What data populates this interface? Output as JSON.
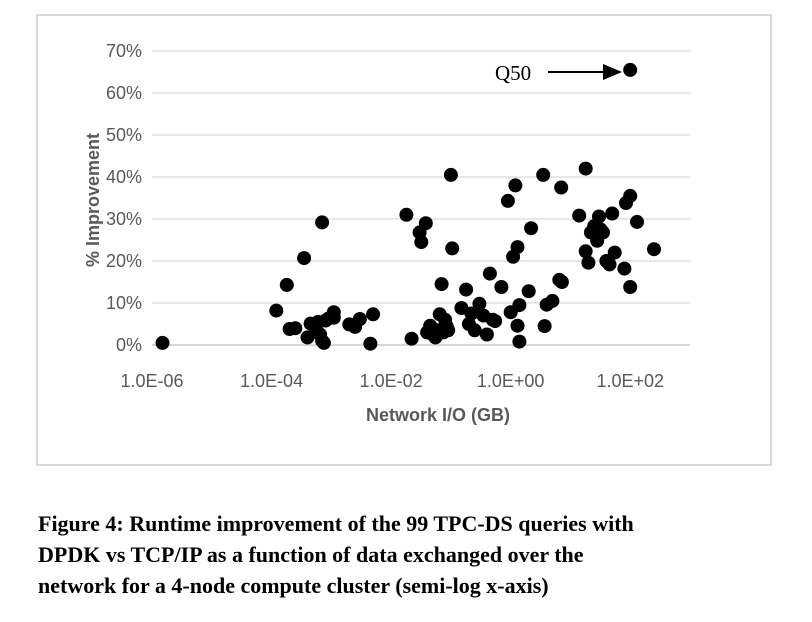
{
  "chart_data": {
    "type": "scatter",
    "title": "",
    "xlabel": "Network I/O (GB)",
    "ylabel": "% Improvement",
    "x_scale": "log",
    "xlim": [
      1e-06,
      1000
    ],
    "ylim": [
      0,
      70
    ],
    "x_ticks": [
      1e-06,
      0.0001,
      0.01,
      1,
      100
    ],
    "x_tick_labels": [
      "1.0E-06",
      "1.0E-04",
      "1.0E-02",
      "1.0E+00",
      "1.0E+02"
    ],
    "y_ticks": [
      0,
      10,
      20,
      30,
      40,
      50,
      60,
      70
    ],
    "y_tick_labels": [
      "0%",
      "10%",
      "20%",
      "30%",
      "40%",
      "50%",
      "60%",
      "70%"
    ],
    "grid": "horizontal",
    "marker_color": "#000000",
    "annotation": {
      "text": "Q50",
      "x": 100,
      "y": 65.5
    },
    "series": [
      {
        "points": [
          [
            1.5e-06,
            0.5
          ],
          [
            0.00012,
            8.2
          ],
          [
            0.00018,
            14.3
          ],
          [
            0.0002,
            3.8
          ],
          [
            0.00025,
            4.0
          ],
          [
            0.00035,
            20.7
          ],
          [
            0.0004,
            1.8
          ],
          [
            0.00045,
            5.1
          ],
          [
            0.00055,
            4.2
          ],
          [
            0.0006,
            5.5
          ],
          [
            0.00065,
            2.5
          ],
          [
            0.0007,
            29.2
          ],
          [
            0.0007,
            1.0
          ],
          [
            0.00075,
            0.5
          ],
          [
            0.0008,
            5.8
          ],
          [
            0.0009,
            6.3
          ],
          [
            0.0011,
            7.8
          ],
          [
            0.0011,
            6.5
          ],
          [
            0.002,
            4.9
          ],
          [
            0.0025,
            4.3
          ],
          [
            0.003,
            6.2
          ],
          [
            0.0045,
            0.3
          ],
          [
            0.005,
            7.3
          ],
          [
            0.018,
            31.0
          ],
          [
            0.022,
            1.5
          ],
          [
            0.03,
            26.8
          ],
          [
            0.032,
            24.5
          ],
          [
            0.038,
            29.0
          ],
          [
            0.04,
            3.0
          ],
          [
            0.045,
            4.6
          ],
          [
            0.05,
            2.5
          ],
          [
            0.055,
            1.8
          ],
          [
            0.06,
            3.5
          ],
          [
            0.065,
            7.3
          ],
          [
            0.07,
            14.5
          ],
          [
            0.075,
            3.0
          ],
          [
            0.08,
            6.0
          ],
          [
            0.085,
            4.4
          ],
          [
            0.09,
            3.5
          ],
          [
            0.1,
            40.5
          ],
          [
            0.105,
            23.0
          ],
          [
            0.15,
            8.8
          ],
          [
            0.18,
            13.2
          ],
          [
            0.2,
            5.0
          ],
          [
            0.22,
            7.5
          ],
          [
            0.25,
            3.5
          ],
          [
            0.3,
            9.8
          ],
          [
            0.35,
            7.0
          ],
          [
            0.4,
            2.5
          ],
          [
            0.45,
            17.0
          ],
          [
            0.5,
            6.0
          ],
          [
            0.55,
            5.7
          ],
          [
            0.7,
            13.8
          ],
          [
            0.9,
            34.3
          ],
          [
            1.0,
            7.8
          ],
          [
            1.1,
            21.0
          ],
          [
            1.2,
            38.0
          ],
          [
            1.3,
            4.6
          ],
          [
            1.3,
            23.3
          ],
          [
            1.4,
            9.5
          ],
          [
            1.4,
            0.8
          ],
          [
            2.0,
            12.8
          ],
          [
            2.2,
            27.8
          ],
          [
            3.5,
            40.5
          ],
          [
            3.7,
            4.5
          ],
          [
            4.0,
            9.6
          ],
          [
            5.0,
            10.5
          ],
          [
            6.5,
            15.5
          ],
          [
            7.0,
            37.5
          ],
          [
            7.2,
            15.0
          ],
          [
            14,
            30.8
          ],
          [
            18,
            42.0
          ],
          [
            18,
            22.3
          ],
          [
            20,
            19.6
          ],
          [
            22,
            26.8
          ],
          [
            25,
            28.3
          ],
          [
            28,
            24.8
          ],
          [
            30,
            30.6
          ],
          [
            32,
            27.5
          ],
          [
            35,
            26.8
          ],
          [
            40,
            20.0
          ],
          [
            45,
            19.2
          ],
          [
            50,
            31.3
          ],
          [
            55,
            22.0
          ],
          [
            80,
            18.2
          ],
          [
            85,
            33.8
          ],
          [
            100,
            35.5
          ],
          [
            100,
            13.8
          ],
          [
            130,
            29.3
          ],
          [
            250,
            22.8
          ],
          [
            100,
            65.5
          ]
        ]
      }
    ]
  },
  "caption": {
    "line1": "Figure 4: Runtime improvement of the 99 TPC-DS queries with",
    "line2": "DPDK vs TCP/IP as a function of data exchanged over the",
    "line3": "network for a 4-node compute cluster (semi-log x-axis)"
  }
}
